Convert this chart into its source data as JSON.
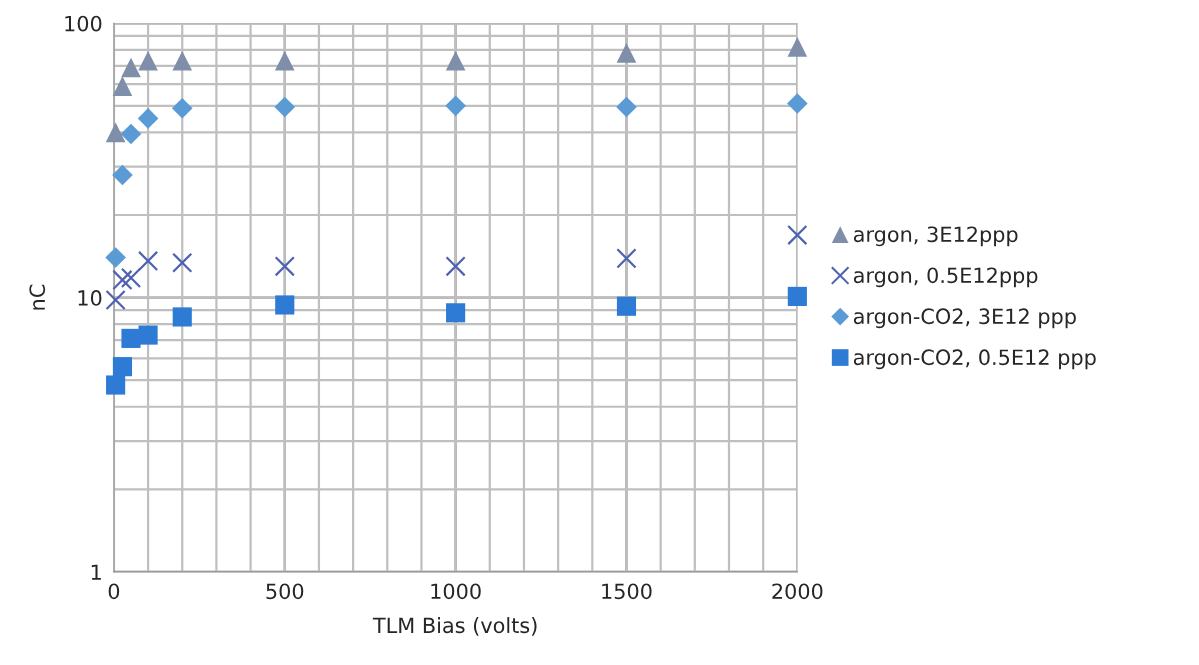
{
  "chart_data": {
    "type": "scatter",
    "xlabel": "TLM Bias (volts)",
    "ylabel": "nC",
    "x": [
      5,
      25,
      50,
      100,
      200,
      500,
      1000,
      1500,
      2000
    ],
    "series": [
      {
        "name": "argon, 3E12ppp",
        "color": "#7f8fa9",
        "marker": "triangle",
        "values": [
          40,
          59,
          69,
          73,
          73,
          73,
          73,
          78,
          82
        ]
      },
      {
        "name": "argon, 0.5E12ppp",
        "color": "#4f62b0",
        "marker": "cross",
        "values": [
          9.8,
          11.6,
          11.8,
          13.6,
          13.4,
          13.0,
          13.0,
          13.9,
          16.9
        ]
      },
      {
        "name": "argon-CO2, 3E12 ppp",
        "color": "#5b9bd5",
        "marker": "diamond",
        "values": [
          14,
          28,
          39.5,
          45,
          49,
          49.5,
          50,
          49.5,
          51
        ]
      },
      {
        "name": "argon-CO2, 0.5E12 ppp",
        "color": "#2e7bd6",
        "marker": "square",
        "values": [
          4.8,
          5.6,
          7.1,
          7.3,
          8.5,
          9.4,
          8.8,
          9.3,
          10.1
        ]
      }
    ],
    "log": "y",
    "grid": true,
    "legend": "right",
    "xlim": [
      0,
      2000
    ],
    "xticks": [
      0,
      {
        "value": 100,
        "label": null
      },
      {
        "value": 200,
        "label": null
      },
      {
        "value": 300,
        "label": null
      },
      {
        "value": 400,
        "label": null
      },
      500,
      {
        "value": 600,
        "label": null
      },
      {
        "value": 700,
        "label": null
      },
      {
        "value": 800,
        "label": null
      },
      {
        "value": 900,
        "label": null
      },
      1000,
      {
        "value": 1100,
        "label": null
      },
      {
        "value": 1200,
        "label": null
      },
      {
        "value": 1300,
        "label": null
      },
      {
        "value": 1400,
        "label": null
      },
      1500,
      {
        "value": 1600,
        "label": null
      },
      {
        "value": 1700,
        "label": null
      },
      {
        "value": 1800,
        "label": null
      },
      {
        "value": 1900,
        "label": null
      },
      2000
    ],
    "ylim": [
      1,
      100
    ],
    "yticks": [
      1,
      {
        "value": 2,
        "label": null
      },
      {
        "value": 3,
        "label": null
      },
      {
        "value": 4,
        "label": null
      },
      {
        "value": 5,
        "label": null
      },
      {
        "value": 6,
        "label": null
      },
      {
        "value": 7,
        "label": null
      },
      {
        "value": 8,
        "label": null
      },
      {
        "value": 9,
        "label": null
      },
      10,
      {
        "value": 20,
        "label": null
      },
      {
        "value": 30,
        "label": null
      },
      {
        "value": 40,
        "label": null
      },
      {
        "value": 50,
        "label": null
      },
      {
        "value": 60,
        "label": null
      },
      {
        "value": 70,
        "label": null
      },
      {
        "value": 80,
        "label": null
      },
      {
        "value": 90,
        "label": null
      },
      100
    ]
  }
}
